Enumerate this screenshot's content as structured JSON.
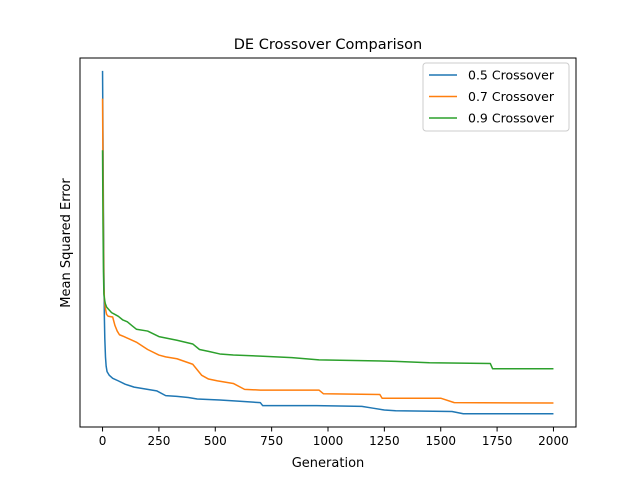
{
  "chart_data": {
    "type": "line",
    "title": "DE Crossover Comparison",
    "xlabel": "Generation",
    "ylabel": "Mean Squared Error",
    "xlim": [
      -100,
      2100
    ],
    "ylim": [
      0,
      100
    ],
    "xticks": [
      0,
      250,
      500,
      750,
      1000,
      1250,
      1500,
      1750,
      2000
    ],
    "xtick_labels": [
      "0",
      "250",
      "500",
      "750",
      "1000",
      "1250",
      "1500",
      "1750",
      "2000"
    ],
    "yticks_shown": false,
    "grid": false,
    "legend_position": "top-right",
    "series": [
      {
        "name": "0.5 Crossover",
        "color": "#1f77b4",
        "points": [
          [
            0,
            96.5
          ],
          [
            2,
            78
          ],
          [
            4,
            58
          ],
          [
            6,
            43
          ],
          [
            8,
            30
          ],
          [
            10,
            24
          ],
          [
            13,
            19
          ],
          [
            16,
            16.5
          ],
          [
            20,
            15
          ],
          [
            30,
            14
          ],
          [
            45,
            13.2
          ],
          [
            70,
            12.5
          ],
          [
            100,
            11.6
          ],
          [
            140,
            10.8
          ],
          [
            190,
            10.3
          ],
          [
            240,
            9.8
          ],
          [
            280,
            8.5
          ],
          [
            330,
            8.3
          ],
          [
            380,
            8.0
          ],
          [
            420,
            7.6
          ],
          [
            520,
            7.3
          ],
          [
            600,
            7.0
          ],
          [
            700,
            6.6
          ],
          [
            710,
            5.8
          ],
          [
            760,
            5.8
          ],
          [
            950,
            5.8
          ],
          [
            1150,
            5.6
          ],
          [
            1200,
            5.1
          ],
          [
            1250,
            4.6
          ],
          [
            1300,
            4.4
          ],
          [
            1550,
            4.2
          ],
          [
            1600,
            3.6
          ],
          [
            2000,
            3.6
          ]
        ]
      },
      {
        "name": "0.7 Crossover",
        "color": "#ff7f0e",
        "points": [
          [
            0,
            89
          ],
          [
            2,
            70
          ],
          [
            4,
            50
          ],
          [
            6,
            38
          ],
          [
            9,
            34
          ],
          [
            13,
            32
          ],
          [
            18,
            30.5
          ],
          [
            25,
            30
          ],
          [
            45,
            29.8
          ],
          [
            55,
            27.5
          ],
          [
            65,
            26
          ],
          [
            75,
            25
          ],
          [
            95,
            24.5
          ],
          [
            150,
            23
          ],
          [
            200,
            21
          ],
          [
            250,
            19.5
          ],
          [
            280,
            19
          ],
          [
            330,
            18.5
          ],
          [
            400,
            17
          ],
          [
            440,
            14
          ],
          [
            470,
            13
          ],
          [
            510,
            12.5
          ],
          [
            580,
            11.8
          ],
          [
            630,
            10.2
          ],
          [
            700,
            10
          ],
          [
            960,
            10
          ],
          [
            980,
            9
          ],
          [
            1230,
            8.8
          ],
          [
            1240,
            7.8
          ],
          [
            1500,
            7.8
          ],
          [
            1560,
            6.6
          ],
          [
            2000,
            6.5
          ]
        ]
      },
      {
        "name": "0.9 Crossover",
        "color": "#2ca02c",
        "points": [
          [
            0,
            75
          ],
          [
            2,
            55
          ],
          [
            4,
            42
          ],
          [
            6,
            36
          ],
          [
            9,
            34.5
          ],
          [
            12,
            33.5
          ],
          [
            18,
            32.5
          ],
          [
            25,
            32
          ],
          [
            40,
            31
          ],
          [
            55,
            30.5
          ],
          [
            70,
            30
          ],
          [
            90,
            29
          ],
          [
            110,
            28.5
          ],
          [
            130,
            27.5
          ],
          [
            150,
            26.5
          ],
          [
            200,
            26
          ],
          [
            250,
            24.5
          ],
          [
            330,
            23.5
          ],
          [
            400,
            22.5
          ],
          [
            430,
            21
          ],
          [
            470,
            20.5
          ],
          [
            520,
            19.8
          ],
          [
            580,
            19.5
          ],
          [
            700,
            19.2
          ],
          [
            840,
            18.8
          ],
          [
            960,
            18.2
          ],
          [
            1300,
            17.8
          ],
          [
            1450,
            17.4
          ],
          [
            1720,
            17.2
          ],
          [
            1730,
            15.8
          ],
          [
            2000,
            15.8
          ]
        ]
      }
    ]
  }
}
